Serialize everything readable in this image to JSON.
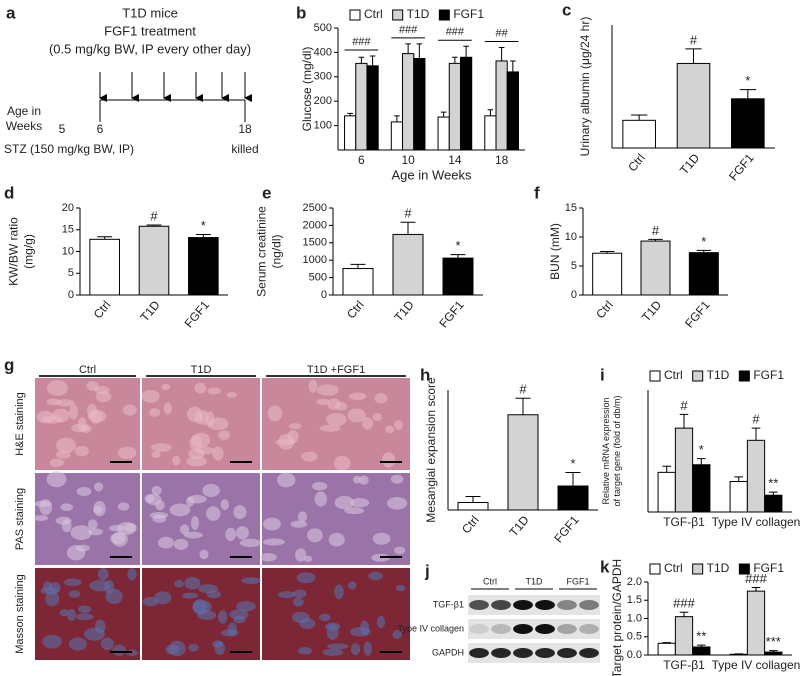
{
  "panel_a": {
    "label": "a",
    "lines": [
      "T1D mice",
      "FGF1 treatment",
      "(0.5 mg/kg BW, IP every other day)"
    ],
    "age_label": [
      "Age in",
      "Weeks"
    ],
    "week_start": "5",
    "week_treat": "6",
    "week_end": "18",
    "stz": "STZ (150 mg/kg BW, IP)",
    "end_label": "killed"
  },
  "panel_g": {
    "label": "g",
    "columns": [
      "Ctrl",
      "T1D",
      "T1D +FGF1"
    ],
    "rows": [
      "H&E staining",
      "PAS staining",
      "Masson staining"
    ]
  },
  "panel_j": {
    "label": "j",
    "groups": [
      "Ctrl",
      "T1D",
      "FGF1"
    ],
    "rows": [
      "TGF-β1",
      "Type IV collagen",
      "GAPDH"
    ]
  },
  "chart_data": [
    {
      "type": "grouped_bar",
      "label": "b",
      "y_label": [
        "Glucose (mg/dl)"
      ],
      "x_label": "Age in Weeks",
      "categories": [
        "6",
        "10",
        "14",
        "18"
      ],
      "series": [
        {
          "name": "Ctrl",
          "color": "#ffffff",
          "values": [
            140,
            115,
            135,
            140
          ],
          "errors": [
            10,
            25,
            20,
            25
          ]
        },
        {
          "name": "T1D",
          "color": "#d3d3d3",
          "values": [
            355,
            395,
            355,
            365
          ],
          "errors": [
            25,
            40,
            25,
            55
          ]
        },
        {
          "name": "FGF1",
          "color": "#000000",
          "values": [
            345,
            375,
            380,
            320
          ],
          "errors": [
            40,
            60,
            45,
            45
          ]
        }
      ],
      "group_annotations": [
        "###",
        "###",
        "###",
        "##"
      ],
      "ylim": [
        0,
        500
      ],
      "yticks": [
        100,
        200,
        300,
        400,
        500
      ]
    },
    {
      "type": "bar",
      "label": "c",
      "y_label": [
        "Urinary albumin (μg/24 hr)"
      ],
      "categories": [
        "Ctrl",
        "T1D",
        "FGF1"
      ],
      "values": [
        180,
        550,
        320
      ],
      "errors": [
        35,
        95,
        60
      ],
      "colors": [
        "#ffffff",
        "#d3d3d3",
        "#000000"
      ],
      "annotations": [
        null,
        "#",
        "*"
      ],
      "ylim": [
        0,
        800
      ]
    },
    {
      "type": "bar",
      "label": "d",
      "y_label": [
        "KW/BW ratio",
        "(mg/g)"
      ],
      "categories": [
        "Ctrl",
        "T1D",
        "FGF1"
      ],
      "values": [
        12.8,
        15.8,
        13.2
      ],
      "errors": [
        0.6,
        0.3,
        0.7
      ],
      "colors": [
        "#ffffff",
        "#d3d3d3",
        "#000000"
      ],
      "annotations": [
        null,
        "#",
        "*"
      ],
      "ylim": [
        0,
        20
      ],
      "yticks": [
        0,
        5,
        10,
        15,
        20
      ]
    },
    {
      "type": "bar",
      "label": "e",
      "y_label": [
        "Serum creatinine",
        "(ng/dl)"
      ],
      "categories": [
        "Ctrl",
        "T1D",
        "FGF1"
      ],
      "values": [
        760,
        1740,
        1060
      ],
      "errors": [
        120,
        350,
        100
      ],
      "colors": [
        "#ffffff",
        "#d3d3d3",
        "#000000"
      ],
      "annotations": [
        null,
        "#",
        "*"
      ],
      "ylim": [
        0,
        2500
      ],
      "yticks": [
        0,
        500,
        1000,
        1500,
        2000,
        2500
      ]
    },
    {
      "type": "bar",
      "label": "f",
      "y_label": [
        "BUN (mM)"
      ],
      "categories": [
        "Ctrl",
        "T1D",
        "FGF1"
      ],
      "values": [
        7.2,
        9.3,
        7.3
      ],
      "errors": [
        0.3,
        0.3,
        0.4
      ],
      "colors": [
        "#ffffff",
        "#d3d3d3",
        "#000000"
      ],
      "annotations": [
        null,
        "#",
        "*"
      ],
      "ylim": [
        0,
        15
      ],
      "yticks": [
        0,
        5,
        10,
        15
      ]
    },
    {
      "type": "bar",
      "label": "h",
      "y_label": [
        "Mesangial expansion score"
      ],
      "categories": [
        "Ctrl",
        "T1D",
        "FGF1"
      ],
      "values": [
        0.1,
        1.27,
        0.32
      ],
      "errors": [
        0.08,
        0.22,
        0.18
      ],
      "colors": [
        "#ffffff",
        "#d3d3d3",
        "#000000"
      ],
      "annotations": [
        null,
        "#",
        "*"
      ],
      "ylim": [
        0,
        1.6
      ]
    },
    {
      "type": "grouped_bar",
      "label": "i",
      "y_label": [
        "Relative mRNA expression",
        "of target gene (fold of db/m)"
      ],
      "categories": [
        "TGF-β1",
        "Type IV collagen"
      ],
      "series": [
        {
          "name": "Ctrl",
          "color": "#ffffff",
          "values": [
            1.3,
            1.0
          ],
          "errors": [
            0.2,
            0.15
          ]
        },
        {
          "name": "T1D",
          "color": "#d3d3d3",
          "values": [
            2.75,
            2.35
          ],
          "errors": [
            0.45,
            0.4
          ],
          "annotations": [
            "#",
            "#"
          ]
        },
        {
          "name": "FGF1",
          "color": "#000000",
          "values": [
            1.55,
            0.55
          ],
          "errors": [
            0.2,
            0.1
          ],
          "annotations": [
            "*",
            "**"
          ]
        }
      ],
      "ylim": [
        0,
        4
      ]
    },
    {
      "type": "grouped_bar",
      "label": "k",
      "y_label": [
        "Target protein/GAPDH"
      ],
      "categories": [
        "TGF-β1",
        "Type IV collagen"
      ],
      "series": [
        {
          "name": "Ctrl",
          "color": "#ffffff",
          "values": [
            0.32,
            0.02
          ],
          "errors": [
            0.02,
            0.01
          ]
        },
        {
          "name": "T1D",
          "color": "#d3d3d3",
          "values": [
            1.05,
            1.75
          ],
          "errors": [
            0.12,
            0.1
          ],
          "annotations": [
            "###",
            "###"
          ]
        },
        {
          "name": "FGF1",
          "color": "#000000",
          "values": [
            0.22,
            0.08
          ],
          "errors": [
            0.05,
            0.04
          ],
          "annotations": [
            "**",
            "***"
          ]
        }
      ],
      "ylim": [
        0,
        2
      ],
      "yticks": [
        {
          "value": 0,
          "label": "0.0"
        },
        {
          "value": 0.5,
          "label": "0.5"
        },
        {
          "value": 1,
          "label": "1.0"
        },
        {
          "value": 1.5,
          "label": "1.5"
        },
        {
          "value": 2,
          "label": "2.0"
        }
      ]
    }
  ]
}
